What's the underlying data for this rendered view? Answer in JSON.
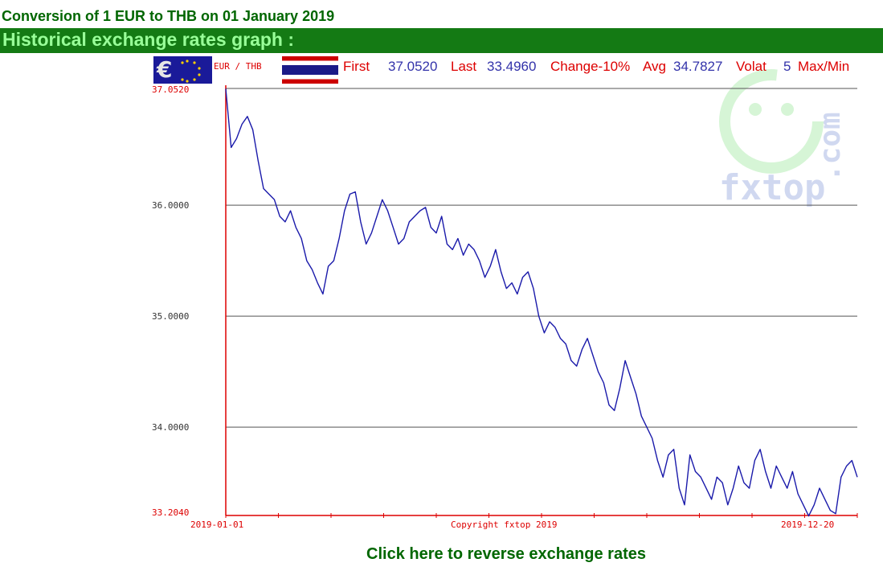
{
  "page": {
    "title": "Conversion of 1 EUR to THB on 01 January 2019",
    "section_title": "Historical exchange rates graph :",
    "reverse_link": "Click here to reverse exchange rates"
  },
  "colors": {
    "dark_green": "#006600",
    "bar_green": "#147a14",
    "bar_text": "#99ff99",
    "series_line": "#1a1aaa",
    "axis_red": "#dd0000",
    "header_red": "#dd0000",
    "header_blue": "#3333aa",
    "grid": "#555555",
    "watermark": "#c8f0c8"
  },
  "chart_header": {
    "pair": "EUR / THB",
    "first_label": "First",
    "first_value": "37.0520",
    "last_label": "Last",
    "last_value": "33.4960",
    "change_label": "Change-10%",
    "avg_label": "Avg",
    "avg_value": "34.7827",
    "volat_label": "Volat",
    "volat_value": "5",
    "maxmin_label": "Max/Min",
    "base_icon": "euro-flag-icon",
    "quote_icon": "thailand-flag-icon"
  },
  "watermark": {
    "text": "fxtop",
    "text2": ".com"
  },
  "chart_data": {
    "type": "line",
    "title": "",
    "xlabel": "",
    "ylabel": "",
    "x_labels": [
      "2019-01-01",
      "Copyright fxtop 2019",
      "2019-12-20"
    ],
    "x_range": [
      "2019-01-01",
      "2019-12-20"
    ],
    "ylim": [
      33.204,
      37.052
    ],
    "y_ticks": [
      "37.0520",
      "36.0000",
      "35.0000",
      "34.0000",
      "33.2040"
    ],
    "grid": true,
    "series": [
      {
        "name": "EUR / THB",
        "values": [
          37.05,
          36.52,
          36.6,
          36.73,
          36.8,
          36.68,
          36.4,
          36.15,
          36.1,
          36.05,
          35.9,
          35.85,
          35.95,
          35.8,
          35.7,
          35.5,
          35.42,
          35.3,
          35.2,
          35.45,
          35.5,
          35.7,
          35.95,
          36.1,
          36.12,
          35.85,
          35.65,
          35.75,
          35.9,
          36.05,
          35.95,
          35.8,
          35.65,
          35.7,
          35.85,
          35.9,
          35.95,
          35.98,
          35.8,
          35.75,
          35.9,
          35.65,
          35.6,
          35.7,
          35.55,
          35.65,
          35.6,
          35.5,
          35.35,
          35.45,
          35.6,
          35.4,
          35.25,
          35.3,
          35.2,
          35.35,
          35.4,
          35.25,
          35.0,
          34.85,
          34.95,
          34.9,
          34.8,
          34.75,
          34.6,
          34.55,
          34.7,
          34.8,
          34.65,
          34.5,
          34.4,
          34.2,
          34.15,
          34.35,
          34.6,
          34.45,
          34.3,
          34.1,
          34.0,
          33.9,
          33.7,
          33.55,
          33.75,
          33.8,
          33.45,
          33.3,
          33.75,
          33.6,
          33.55,
          33.45,
          33.35,
          33.55,
          33.5,
          33.3,
          33.45,
          33.65,
          33.5,
          33.45,
          33.7,
          33.8,
          33.6,
          33.45,
          33.65,
          33.55,
          33.45,
          33.6,
          33.4,
          33.3,
          33.2,
          33.3,
          33.45,
          33.35,
          33.25,
          33.22,
          33.55,
          33.65,
          33.7,
          33.55
        ]
      }
    ]
  }
}
